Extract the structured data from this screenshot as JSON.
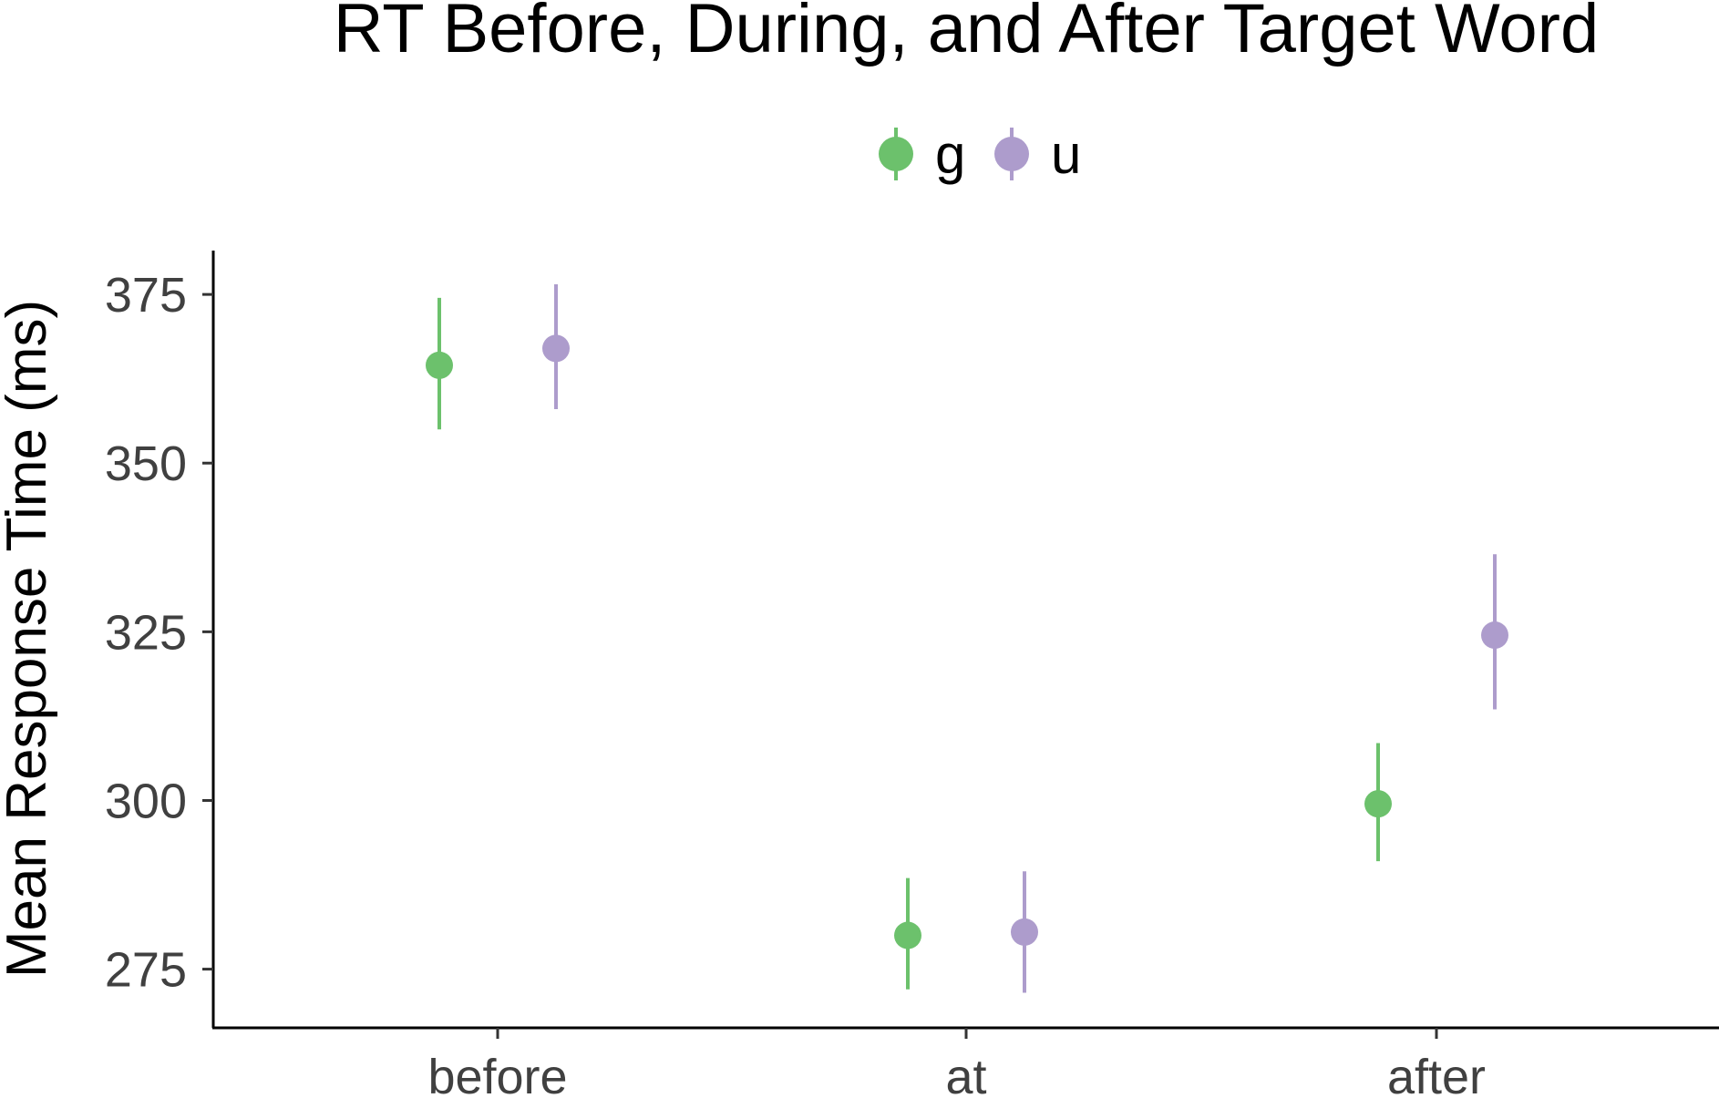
{
  "chart_data": {
    "type": "scatter",
    "title": "RT Before, During, and After Target Word",
    "xlabel": "",
    "ylabel": "Mean Response Time (ms)",
    "categories": [
      "before",
      "at",
      "after"
    ],
    "ylim": [
      266.3,
      381.5
    ],
    "yticks": [
      275,
      300,
      325,
      350,
      375
    ],
    "grid": false,
    "legend_position": "top",
    "error_bars": true,
    "series": [
      {
        "name": "g",
        "color": "#6cc16c",
        "values": [
          364.5,
          280.0,
          299.5
        ],
        "lower": [
          355.0,
          272.0,
          291.0
        ],
        "upper": [
          374.5,
          288.5,
          308.5
        ]
      },
      {
        "name": "u",
        "color": "#ad9ccc",
        "values": [
          367.0,
          280.5,
          324.5
        ],
        "lower": [
          358.0,
          271.5,
          313.5
        ],
        "upper": [
          376.5,
          289.5,
          336.5
        ]
      }
    ]
  }
}
